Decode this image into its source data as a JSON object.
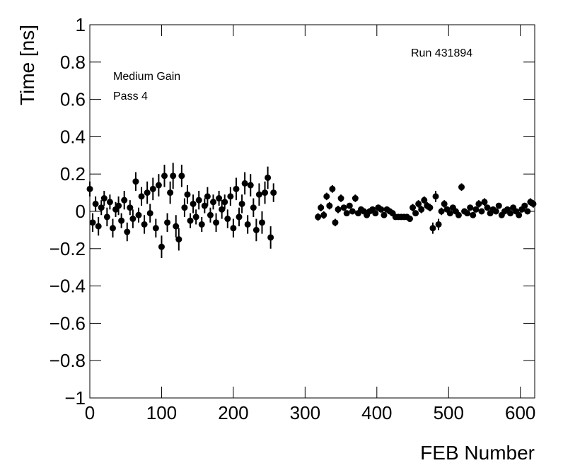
{
  "chart_data": {
    "type": "scatter",
    "x_label": "FEB Number",
    "y_label": "Time [ns]",
    "annotations": [
      "Medium Gain",
      "Pass 4",
      "Run 431894"
    ],
    "xlim": [
      0,
      620
    ],
    "xticks": [
      0,
      100,
      200,
      300,
      400,
      500,
      600
    ],
    "ylim": [
      -1,
      1
    ],
    "yticks": [
      {
        "value": -1,
        "label": "−1"
      },
      {
        "value": -0.8,
        "label": "−0.8"
      },
      {
        "value": -0.6,
        "label": "−0.6"
      },
      {
        "value": -0.4,
        "label": "−0.4"
      },
      {
        "value": -0.2,
        "label": "−0.2"
      },
      0,
      0.2,
      0.4,
      0.6,
      0.8,
      1
    ],
    "series": [
      {
        "color": "#000000",
        "x": [
          0,
          4,
          8,
          12,
          16,
          20,
          24,
          28,
          32,
          36,
          40,
          44,
          48,
          52,
          56,
          60,
          64,
          68,
          72,
          76,
          80,
          84,
          88,
          92,
          96,
          100,
          104,
          108,
          112,
          116,
          120,
          124,
          128,
          132,
          136,
          140,
          144,
          148,
          152,
          156,
          160,
          164,
          168,
          172,
          176,
          180,
          184,
          188,
          192,
          196,
          200,
          204,
          208,
          212,
          216,
          220,
          224,
          228,
          232,
          236,
          240,
          244,
          248,
          252,
          256,
          318,
          322,
          326,
          330,
          334,
          338,
          342,
          346,
          350,
          354,
          358,
          362,
          366,
          370,
          374,
          378,
          382,
          386,
          390,
          394,
          398,
          402,
          406,
          410,
          414,
          418,
          422,
          426,
          430,
          434,
          438,
          442,
          446,
          450,
          454,
          458,
          462,
          466,
          470,
          474,
          478,
          482,
          486,
          490,
          494,
          498,
          502,
          506,
          510,
          514,
          518,
          522,
          526,
          530,
          534,
          538,
          542,
          546,
          550,
          554,
          558,
          562,
          566,
          570,
          574,
          578,
          582,
          586,
          590,
          594,
          598,
          602,
          606,
          610,
          614,
          618
        ],
        "values": [
          0.12,
          -0.06,
          0.04,
          -0.08,
          0.02,
          0.07,
          -0.03,
          0.05,
          -0.09,
          0.01,
          0.03,
          -0.05,
          0.06,
          -0.11,
          0.02,
          -0.04,
          0.16,
          -0.02,
          0.08,
          -0.07,
          0.1,
          -0.01,
          0.12,
          -0.09,
          0.14,
          -0.19,
          0.19,
          -0.06,
          0.1,
          0.19,
          -0.08,
          -0.15,
          0.19,
          0.02,
          0.09,
          -0.05,
          0.04,
          -0.03,
          0.06,
          -0.07,
          0.03,
          0.08,
          -0.02,
          0.05,
          -0.06,
          0.07,
          0.01,
          0.05,
          -0.04,
          0.08,
          -0.09,
          0.12,
          -0.03,
          0.04,
          0.15,
          -0.07,
          0.14,
          0.02,
          -0.1,
          0.09,
          -0.06,
          0.1,
          0.18,
          -0.14,
          0.1,
          -0.03,
          0.02,
          -0.02,
          0.08,
          0.03,
          0.12,
          -0.06,
          0.01,
          0.07,
          0.02,
          -0.01,
          0.03,
          0.0,
          0.07,
          -0.01,
          0.01,
          0.0,
          -0.02,
          0.0,
          0.01,
          -0.01,
          0.02,
          0.01,
          -0.02,
          0.01,
          0.0,
          -0.01,
          -0.03,
          -0.03,
          -0.03,
          -0.03,
          -0.03,
          -0.04,
          0.02,
          -0.01,
          0.04,
          0.01,
          0.06,
          0.03,
          0.02,
          -0.09,
          0.08,
          -0.07,
          0.0,
          0.04,
          0.01,
          -0.01,
          0.02,
          0.0,
          -0.02,
          0.13,
          0.0,
          -0.01,
          0.02,
          -0.02,
          0.01,
          0.04,
          0.0,
          0.05,
          0.02,
          -0.01,
          0.01,
          0.0,
          0.03,
          -0.02,
          0.0,
          0.01,
          -0.01,
          0.02,
          0.0,
          -0.02,
          0.01,
          0.03,
          0.0,
          0.05,
          0.04
        ],
        "errors": [
          0.04,
          0.05,
          0.04,
          0.05,
          0.04,
          0.04,
          0.05,
          0.04,
          0.05,
          0.04,
          0.05,
          0.04,
          0.05,
          0.05,
          0.04,
          0.05,
          0.05,
          0.04,
          0.05,
          0.05,
          0.06,
          0.05,
          0.06,
          0.05,
          0.06,
          0.06,
          0.06,
          0.05,
          0.06,
          0.07,
          0.06,
          0.06,
          0.06,
          0.05,
          0.05,
          0.04,
          0.05,
          0.04,
          0.05,
          0.04,
          0.04,
          0.05,
          0.04,
          0.04,
          0.05,
          0.04,
          0.05,
          0.04,
          0.05,
          0.05,
          0.05,
          0.06,
          0.05,
          0.05,
          0.06,
          0.05,
          0.06,
          0.05,
          0.06,
          0.06,
          0.06,
          0.06,
          0.06,
          0.06,
          0.05,
          0.02,
          0.02,
          0.02,
          0.02,
          0.02,
          0.02,
          0.02,
          0.02,
          0.02,
          0.015,
          0.015,
          0.015,
          0.015,
          0.02,
          0.015,
          0.015,
          0.015,
          0.015,
          0.015,
          0.015,
          0.015,
          0.015,
          0.015,
          0.015,
          0.015,
          0.015,
          0.015,
          0.01,
          0.01,
          0.01,
          0.01,
          0.01,
          0.01,
          0.02,
          0.015,
          0.02,
          0.02,
          0.02,
          0.02,
          0.02,
          0.03,
          0.03,
          0.03,
          0.02,
          0.02,
          0.015,
          0.015,
          0.015,
          0.015,
          0.015,
          0.02,
          0.015,
          0.015,
          0.015,
          0.015,
          0.015,
          0.02,
          0.015,
          0.02,
          0.015,
          0.015,
          0.015,
          0.015,
          0.015,
          0.015,
          0.015,
          0.015,
          0.015,
          0.015,
          0.015,
          0.015,
          0.015,
          0.015,
          0.015,
          0.02,
          0.02
        ]
      }
    ]
  }
}
